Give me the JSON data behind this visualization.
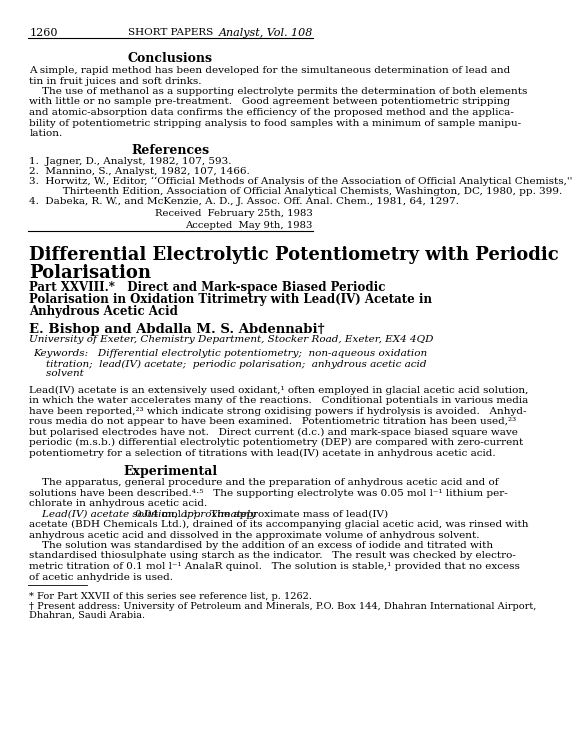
{
  "background_color": "#ffffff",
  "page_number": "1260",
  "header_center": "SHORT PAPERS",
  "header_right": "Analyst, Vol. 108",
  "section1_title": "Conclusions",
  "section1_body": "A simple, rapid method has been developed for the simultaneous determination of lead and\ntin in fruit juices and soft drinks.\n    The use of methanol as a supporting electrolyte permits the determination of both elements\nwith little or no sample pre-treatment.   Good agreement between potentiometric stripping\nand atomic-absorption data confirms the efficiency of the proposed method and the applica-\nbility of potentiometric stripping analysis to food samples with a minimum of sample manipu-\nlation.",
  "section2_title": "References",
  "references": [
    "1.  Jagner, D., Analyst, 1982, 107, 593.",
    "2.  Mannino, S., Analyst, 1982, 107, 1466.",
    "3.  Horwitz, W., Editor, ‘‘Official Methods of Analysis of the Association of Official Analytical Chemists,''\n       Thirteenth Edition, Association of Official Analytical Chemists, Washington, DC, 1980, pp. 399.",
    "4.  Dabeka, R. W., and McKenzie, A. D., J. Assoc. Off. Anal. Chem., 1981, 64, 1297."
  ],
  "received_text": "Received  February 25th, 1983\nAccepted  May 9th, 1983",
  "main_title_line1": "Differential Electrolytic Potentiometry with Periodic",
  "main_title_line2": "Polarisation",
  "subtitle": "Part XXVIII.*   Direct and Mark-space Biased Periodic\nPolarisation in Oxidation Titrimetry with Lead(IV) Acetate in\nAnhydrous Acetic Acid",
  "authors": "E. Bishop and Abdalla M. S. Abdennabi†",
  "affiliation": "University of Exeter, Chemistry Department, Stocker Road, Exeter, EX4 4QD",
  "keywords": "Keywords:   Differential electrolytic potentiometry;  non-aqueous oxidation\n    titration;  lead(IV) acetate;  periodic polarisation;  anhydrous acetic acid\n    solvent",
  "intro_para": "Lead(IV) acetate is an extensively used oxidant,¹ often employed in glacial acetic acid solution,\nin which the water accelerates many of the reactions.   Conditional potentials in various media\nhave been reported,²³ which indicate strong oxidising powers if hydrolysis is avoided.   Anhyd-\nrous media do not appear to have been examined.   Potentiometric titration has been used,²³\nbut polarised electrodes have not.   Direct current (d.c.) and mark-space biased square wave\nperiodic (m.s.b.) differential electrolytic potentiometry (DEP) are compared with zero-current\npotentiometry for a selection of titrations with lead(IV) acetate in anhydrous acetic acid.",
  "section3_title": "Experimental",
  "exp_para1": "    The apparatus, general procedure and the preparation of anhydrous acetic acid and of\nsolutions have been described.⁴⋅⁵   The supporting electrolyte was 0.05 mol l⁻¹ lithium per-\nchlorate in anhydrous acetic acid.",
  "exp_para2": "    Lead(IV) acetate solution, approximately 0.04 mol l⁻¹.   The approximate mass of lead(IV)\nacetate (BDH Chemicals Ltd.), drained of its accompanying glacial acetic acid, was rinsed with\nanhydrous acetic acid and dissolved in the approximate volume of anhydrous solvent.",
  "exp_para3": "    The solution was standardised by the addition of an excess of iodide and titrated with\nstandardised thiosulphate using starch as the indicator.   The result was checked by electro-\nmetric titration of 0.1 mol l⁻¹ AnalaR quinol.   The solution is stable,¹ provided that no excess\nof acetic anhydride is used.",
  "footnote1": "* For Part XXVII of this series see reference list, p. 1262.",
  "footnote2": "† Present address: University of Petroleum and Minerals, P.O. Box 144, Dhahran International Airport,\nDhahran, Saudi Arabia."
}
